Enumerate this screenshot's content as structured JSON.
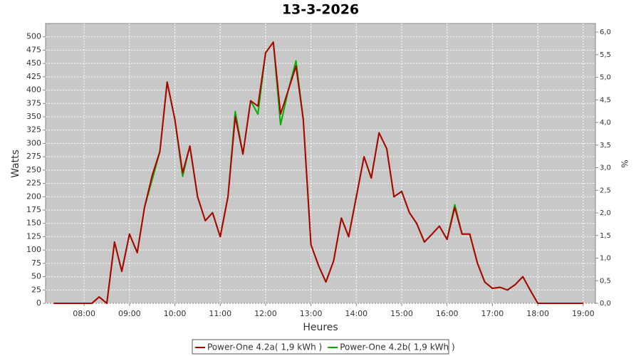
{
  "chart_data": {
    "type": "line",
    "title": "13-3-2026",
    "x_label": "Heures",
    "y_label": "Watts",
    "y2_label": "%",
    "x": [
      7.33,
      7.5,
      7.67,
      7.83,
      8,
      8.17,
      8.33,
      8.5,
      8.67,
      8.83,
      9,
      9.17,
      9.33,
      9.5,
      9.67,
      9.83,
      10,
      10.17,
      10.33,
      10.5,
      10.67,
      10.83,
      11,
      11.17,
      11.33,
      11.5,
      11.67,
      11.83,
      12,
      12.17,
      12.33,
      12.5,
      12.67,
      12.83,
      13,
      13.17,
      13.33,
      13.5,
      13.67,
      13.83,
      14,
      14.17,
      14.33,
      14.5,
      14.67,
      14.83,
      15,
      15.17,
      15.33,
      15.5,
      15.67,
      15.83,
      16,
      16.17,
      16.33,
      16.5,
      16.67,
      16.83,
      17,
      17.17,
      17.33,
      17.5,
      17.67,
      17.83,
      18,
      18.17,
      18.33,
      18.5,
      18.67,
      18.83,
      19
    ],
    "series": [
      {
        "name": "Power-One 4.2a( 1,9 kWh )",
        "color": "#b00000",
        "values": [
          0,
          0,
          0,
          0,
          0,
          0,
          12,
          0,
          115,
          60,
          130,
          95,
          180,
          240,
          285,
          415,
          345,
          245,
          295,
          200,
          155,
          170,
          125,
          200,
          350,
          280,
          380,
          370,
          470,
          490,
          355,
          400,
          445,
          345,
          110,
          70,
          40,
          80,
          160,
          125,
          200,
          275,
          235,
          320,
          290,
          200,
          210,
          170,
          150,
          115,
          130,
          145,
          120,
          180,
          130,
          130,
          75,
          40,
          28,
          30,
          25,
          35,
          50,
          25,
          0,
          0,
          0,
          0,
          0,
          0,
          0
        ]
      },
      {
        "name": "Power-One 4.2b( 1,9 kWh )",
        "color": "#00b000",
        "values": [
          0,
          0,
          0,
          0,
          0,
          0,
          12,
          0,
          115,
          60,
          130,
          95,
          180,
          232,
          285,
          415,
          345,
          238,
          295,
          200,
          155,
          170,
          125,
          200,
          360,
          280,
          380,
          355,
          470,
          490,
          335,
          400,
          455,
          345,
          110,
          70,
          40,
          80,
          160,
          125,
          200,
          275,
          235,
          320,
          290,
          200,
          210,
          170,
          150,
          115,
          130,
          145,
          120,
          185,
          130,
          130,
          75,
          40,
          28,
          30,
          25,
          35,
          50,
          25,
          0,
          0,
          0,
          0,
          0,
          0,
          0
        ]
      }
    ],
    "xlim": [
      7.15,
      19.27
    ],
    "xticks": [
      {
        "value": 8,
        "label": "08:00"
      },
      {
        "value": 9,
        "label": "09:00"
      },
      {
        "value": 10,
        "label": "10:00"
      },
      {
        "value": 11,
        "label": "11:00"
      },
      {
        "value": 12,
        "label": "12:00"
      },
      {
        "value": 13,
        "label": "13:00"
      },
      {
        "value": 14,
        "label": "14:00"
      },
      {
        "value": 15,
        "label": "15:00"
      },
      {
        "value": 16,
        "label": "16:00"
      },
      {
        "value": 17,
        "label": "17:00"
      },
      {
        "value": 18,
        "label": "18:00"
      },
      {
        "value": 19,
        "label": "19:00"
      }
    ],
    "ylim": [
      0,
      525
    ],
    "yticks": [
      0,
      25,
      50,
      75,
      100,
      125,
      150,
      175,
      200,
      225,
      250,
      275,
      300,
      325,
      350,
      375,
      400,
      425,
      450,
      475,
      500
    ],
    "y2lim": [
      0,
      6.19
    ],
    "y2ticks": [
      {
        "value": 0,
        "label": "0,0"
      },
      {
        "value": 0.5,
        "label": "0,5"
      },
      {
        "value": 1,
        "label": "1,0"
      },
      {
        "value": 1.5,
        "label": "1,5"
      },
      {
        "value": 2,
        "label": "2,0"
      },
      {
        "value": 2.5,
        "label": "2,5"
      },
      {
        "value": 3,
        "label": "3,0"
      },
      {
        "value": 3.5,
        "label": "3,5"
      },
      {
        "value": 4,
        "label": "4,0"
      },
      {
        "value": 4.5,
        "label": "4,5"
      },
      {
        "value": 5,
        "label": "5,0"
      },
      {
        "value": 5.5,
        "label": "5,5"
      },
      {
        "value": 6,
        "label": "6,0"
      }
    ],
    "grid": true,
    "legend": "bottom"
  }
}
